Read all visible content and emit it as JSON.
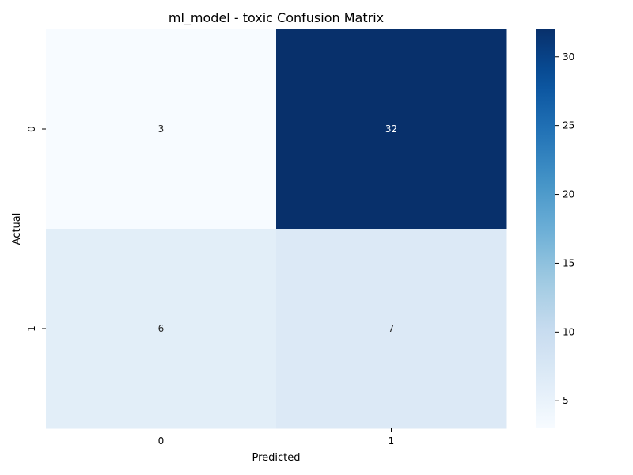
{
  "chart_data": {
    "type": "heatmap",
    "title": "ml_model - toxic Confusion Matrix",
    "xlabel": "Predicted",
    "ylabel": "Actual",
    "x_categories": [
      "0",
      "1"
    ],
    "y_categories": [
      "0",
      "1"
    ],
    "values": [
      [
        3,
        32
      ],
      [
        6,
        7
      ]
    ],
    "colormap": "Blues",
    "color_range": [
      3,
      32
    ],
    "colorbar_ticks": [
      5,
      10,
      15,
      20,
      25,
      30
    ],
    "grid": false
  }
}
